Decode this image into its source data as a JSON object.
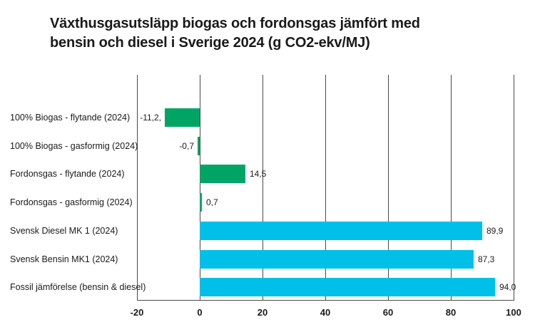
{
  "title": {
    "line1": "Växthusgasutsläpp biogas och fordonsgas jämfört med",
    "line2": "bensin och diesel i Sverige 2024 (g CO2-ekv/MJ)"
  },
  "chart_data": {
    "type": "bar",
    "orientation": "horizontal",
    "title": "Växthusgasutsläpp biogas och fordonsgas jämfört med bensin och diesel i Sverige 2024 (g CO2-ekv/MJ)",
    "categories": [
      "100% Biogas - flytande (2024)",
      "100% Biogas - gasformig (2024)",
      "Fordonsgas - flytande (2024)",
      "Fordonsgas - gasformig (2024)",
      "Svensk Diesel MK 1 (2024)",
      "Svensk Bensin MK1 (2024)",
      "Fossil jämförelse (bensin & diesel)"
    ],
    "values": [
      -11.2,
      -0.7,
      14.5,
      0.7,
      89.9,
      87.3,
      94.0
    ],
    "value_labels": [
      "-11,2,",
      "-0,7",
      "14,5",
      "0,7",
      "89,9",
      "87,3",
      "94,0"
    ],
    "bar_colors": [
      "#00A566",
      "#00A566",
      "#00A566",
      "#00A566",
      "#00BFE8",
      "#00BFE8",
      "#00BFE8"
    ],
    "x_ticks": [
      "-20",
      "0",
      "20",
      "40",
      "60",
      "80",
      "100"
    ],
    "x_tick_values": [
      -20,
      0,
      20,
      40,
      60,
      80,
      100
    ],
    "xlim": [
      -20,
      100
    ],
    "xlabel": "",
    "ylabel": "",
    "grid": "vertical-gridlines",
    "legend": "none",
    "colors": {
      "biogas_green": "#00A566",
      "fossil_cyan": "#00BFE8",
      "gridline": "#4a4a4a",
      "text": "#1a1a1a",
      "background": "#ffffff"
    }
  }
}
